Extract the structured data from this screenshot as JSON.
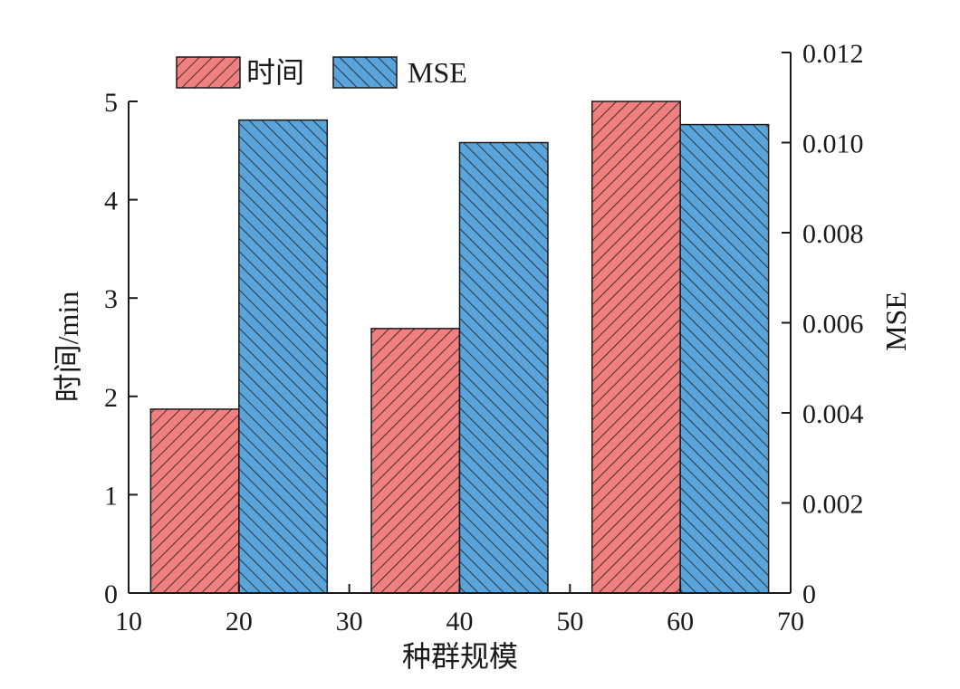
{
  "chart_data": {
    "type": "bar",
    "xlabel": "种群规模",
    "ylabel_left": "时间/min",
    "ylabel_right": "MSE",
    "x_ticks": [
      10,
      20,
      30,
      40,
      50,
      60,
      70
    ],
    "xlim": [
      10,
      70
    ],
    "categories": [
      20,
      40,
      60
    ],
    "series": [
      {
        "name": "时间",
        "axis": "left",
        "values": [
          1.87,
          2.69,
          5.0
        ],
        "color": "#f07f7f",
        "hatch": "forward"
      },
      {
        "name": "MSE",
        "axis": "right",
        "values": [
          0.0105,
          0.01,
          0.0104
        ],
        "color": "#5aa4dc",
        "hatch": "backward"
      }
    ],
    "ylim_left": [
      0,
      5
    ],
    "yticks_left": [
      "0",
      "1",
      "2",
      "3",
      "4",
      "5"
    ],
    "ylim_right": [
      0,
      0.012
    ],
    "yticks_right": [
      "0",
      "0.002",
      "0.004",
      "0.006",
      "0.008",
      "0.010",
      "0.012"
    ],
    "legend_position": "top-left",
    "grid": false
  }
}
